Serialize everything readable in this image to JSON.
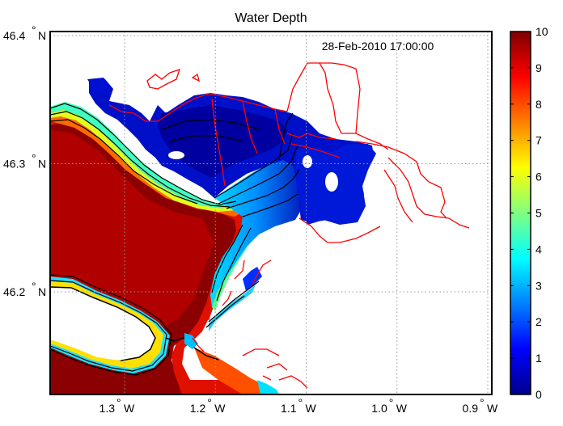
{
  "map": {
    "title": "Water Depth",
    "timestamp": "28-Feb-2010 17:00:00",
    "lat_ticks": [
      {
        "label": "46.4",
        "unit": "N",
        "value": 46.4
      },
      {
        "label": "46.3",
        "unit": "N",
        "value": 46.3
      },
      {
        "label": "46.2",
        "unit": "N",
        "value": 46.2
      }
    ],
    "lon_ticks": [
      {
        "label": "1.3",
        "unit": "W",
        "value": 1.3
      },
      {
        "label": "1.2",
        "unit": "W",
        "value": 1.2
      },
      {
        "label": "1.1",
        "unit": "W",
        "value": 1.1
      },
      {
        "label": "1.0",
        "unit": "W",
        "value": 1.0
      },
      {
        "label": "0.9",
        "unit": "W",
        "value": 0.9
      }
    ],
    "colors": {
      "deep": "#800000",
      "shallow": "#00008f",
      "land": "#ffffff",
      "coastline": "#ff0000",
      "contour": "#000000"
    }
  },
  "colorbar": {
    "min": 0,
    "max": 10,
    "ticks": [
      "0",
      "1",
      "2",
      "3",
      "4",
      "5",
      "6",
      "7",
      "8",
      "9",
      "10"
    ],
    "stops": [
      "#00008f",
      "#0000ff",
      "#0080ff",
      "#00ffff",
      "#80ff80",
      "#ffff00",
      "#ff8000",
      "#ff0000",
      "#800000"
    ]
  }
}
